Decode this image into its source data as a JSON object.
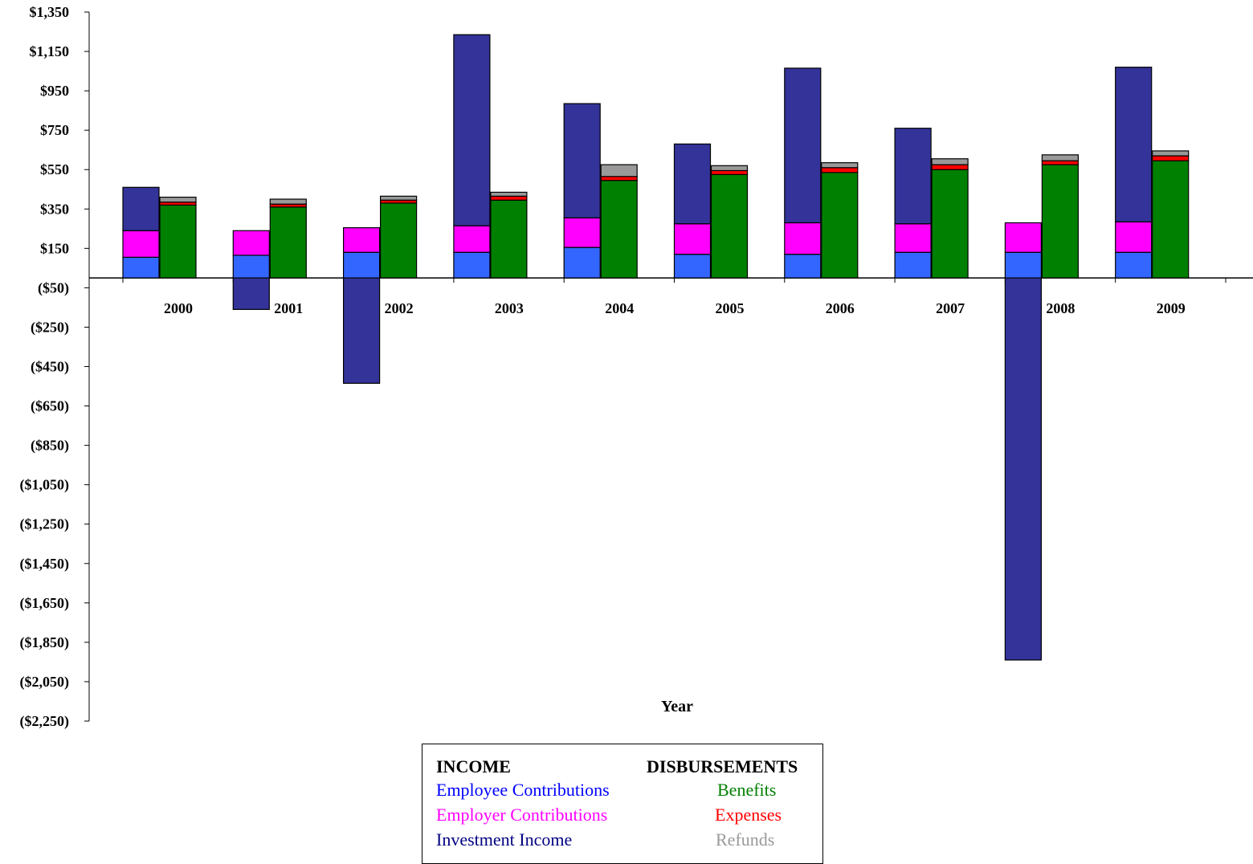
{
  "chart_data": {
    "type": "bar",
    "xlabel": "Year",
    "ylabel": "",
    "ylim": [
      -2250,
      1350
    ],
    "y_ticks": [
      1350,
      1150,
      950,
      750,
      550,
      350,
      150,
      -50,
      -250,
      -450,
      -650,
      -850,
      -1050,
      -1250,
      -1450,
      -1650,
      -1850,
      -2050,
      -2250
    ],
    "y_tick_labels": [
      "$1,350",
      "$1,150",
      "$950",
      "$750",
      "$550",
      "$350",
      "$150",
      "($50)",
      "($250)",
      "($450)",
      "($650)",
      "($850)",
      "($1,050)",
      "($1,250)",
      "($1,450)",
      "($1,650)",
      "($1,850)",
      "($2,050)",
      "($2,250)"
    ],
    "categories": [
      "2000",
      "2001",
      "2002",
      "2003",
      "2004",
      "2005",
      "2006",
      "2007",
      "2008",
      "2009"
    ],
    "income": [
      {
        "name": "Employee Contributions",
        "color": "#3366ff",
        "values": [
          105,
          115,
          130,
          130,
          155,
          120,
          120,
          130,
          130,
          130
        ]
      },
      {
        "name": "Employer Contributions",
        "color": "#ff00ff",
        "values": [
          135,
          125,
          125,
          135,
          150,
          155,
          160,
          145,
          150,
          155
        ]
      },
      {
        "name": "Investment Income",
        "color": "#333399",
        "values": [
          220,
          -160,
          -535,
          970,
          580,
          405,
          785,
          485,
          -1940,
          785
        ]
      }
    ],
    "disbursements": [
      {
        "name": "Benefits",
        "color": "#008000",
        "values": [
          370,
          360,
          380,
          395,
          495,
          525,
          535,
          550,
          575,
          595
        ]
      },
      {
        "name": "Expenses",
        "color": "#ff0000",
        "values": [
          15,
          15,
          15,
          20,
          20,
          20,
          25,
          25,
          20,
          25
        ]
      },
      {
        "name": "Refunds",
        "color": "#999999",
        "values": [
          25,
          25,
          20,
          20,
          60,
          25,
          25,
          30,
          30,
          25
        ]
      }
    ]
  },
  "legend": {
    "income_heading": "INCOME",
    "disbursements_heading": "DISBURSEMENTS",
    "income_items": [
      "Employee Contributions",
      "Employer Contributions",
      "Investment Income"
    ],
    "disbursement_items": [
      "Benefits",
      "Expenses",
      "Refunds"
    ],
    "colors": {
      "Employee Contributions": "#0000ff",
      "Employer Contributions": "#ff00ff",
      "Investment Income": "#000080",
      "Benefits": "#008000",
      "Expenses": "#ff0000",
      "Refunds": "#999999"
    }
  }
}
